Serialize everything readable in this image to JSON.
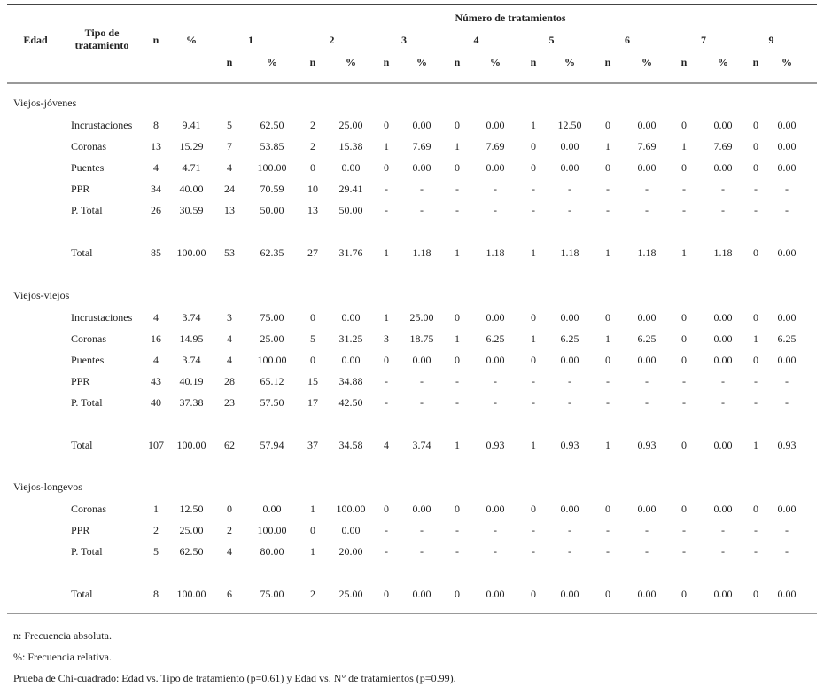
{
  "header": {
    "edad": "Edad",
    "tipo": "Tipo de tratamiento",
    "n": "n",
    "pct": "%",
    "numero_tratamientos": "Número de tratamientos",
    "groups": [
      "1",
      "2",
      "3",
      "4",
      "5",
      "6",
      "7",
      "9"
    ],
    "sub_n": "n",
    "sub_pct": "%"
  },
  "sections": [
    {
      "age": "Viejos-jóvenes",
      "rows": [
        [
          "Incrustaciones",
          "8",
          "9.41",
          "5",
          "62.50",
          "2",
          "25.00",
          "0",
          "0.00",
          "0",
          "0.00",
          "1",
          "12.50",
          "0",
          "0.00",
          "0",
          "0.00",
          "0",
          "0.00"
        ],
        [
          "Coronas",
          "13",
          "15.29",
          "7",
          "53.85",
          "2",
          "15.38",
          "1",
          "7.69",
          "1",
          "7.69",
          "0",
          "0.00",
          "1",
          "7.69",
          "1",
          "7.69",
          "0",
          "0.00"
        ],
        [
          "Puentes",
          "4",
          "4.71",
          "4",
          "100.00",
          "0",
          "0.00",
          "0",
          "0.00",
          "0",
          "0.00",
          "0",
          "0.00",
          "0",
          "0.00",
          "0",
          "0.00",
          "0",
          "0.00"
        ],
        [
          "PPR",
          "34",
          "40.00",
          "24",
          "70.59",
          "10",
          "29.41",
          "-",
          "-",
          "-",
          "-",
          "-",
          "-",
          "-",
          "-",
          "-",
          "-",
          "-",
          "-"
        ],
        [
          "P. Total",
          "26",
          "30.59",
          "13",
          "50.00",
          "13",
          "50.00",
          "-",
          "-",
          "-",
          "-",
          "-",
          "-",
          "-",
          "-",
          "-",
          "-",
          "-",
          "-"
        ]
      ],
      "total": [
        "Total",
        "85",
        "100.00",
        "53",
        "62.35",
        "27",
        "31.76",
        "1",
        "1.18",
        "1",
        "1.18",
        "1",
        "1.18",
        "1",
        "1.18",
        "1",
        "1.18",
        "0",
        "0.00"
      ]
    },
    {
      "age": "Viejos-viejos",
      "rows": [
        [
          "Incrustaciones",
          "4",
          "3.74",
          "3",
          "75.00",
          "0",
          "0.00",
          "1",
          "25.00",
          "0",
          "0.00",
          "0",
          "0.00",
          "0",
          "0.00",
          "0",
          "0.00",
          "0",
          "0.00"
        ],
        [
          "Coronas",
          "16",
          "14.95",
          "4",
          "25.00",
          "5",
          "31.25",
          "3",
          "18.75",
          "1",
          "6.25",
          "1",
          "6.25",
          "1",
          "6.25",
          "0",
          "0.00",
          "1",
          "6.25"
        ],
        [
          "Puentes",
          "4",
          "3.74",
          "4",
          "100.00",
          "0",
          "0.00",
          "0",
          "0.00",
          "0",
          "0.00",
          "0",
          "0.00",
          "0",
          "0.00",
          "0",
          "0.00",
          "0",
          "0.00"
        ],
        [
          "PPR",
          "43",
          "40.19",
          "28",
          "65.12",
          "15",
          "34.88",
          "-",
          "-",
          "-",
          "-",
          "-",
          "-",
          "-",
          "-",
          "-",
          "-",
          "-",
          "-"
        ],
        [
          "P. Total",
          "40",
          "37.38",
          "23",
          "57.50",
          "17",
          "42.50",
          "-",
          "-",
          "-",
          "-",
          "-",
          "-",
          "-",
          "-",
          "-",
          "-",
          "-",
          "-"
        ]
      ],
      "total": [
        "Total",
        "107",
        "100.00",
        "62",
        "57.94",
        "37",
        "34.58",
        "4",
        "3.74",
        "1",
        "0.93",
        "1",
        "0.93",
        "1",
        "0.93",
        "0",
        "0.00",
        "1",
        "0.93"
      ]
    },
    {
      "age": "Viejos-longevos",
      "rows": [
        [
          "Coronas",
          "1",
          "12.50",
          "0",
          "0.00",
          "1",
          "100.00",
          "0",
          "0.00",
          "0",
          "0.00",
          "0",
          "0.00",
          "0",
          "0.00",
          "0",
          "0.00",
          "0",
          "0.00"
        ],
        [
          "PPR",
          "2",
          "25.00",
          "2",
          "100.00",
          "0",
          "0.00",
          "-",
          "-",
          "-",
          "-",
          "-",
          "-",
          "-",
          "-",
          "-",
          "-",
          "-",
          "-"
        ],
        [
          "P. Total",
          "5",
          "62.50",
          "4",
          "80.00",
          "1",
          "20.00",
          "-",
          "-",
          "-",
          "-",
          "-",
          "-",
          "-",
          "-",
          "-",
          "-",
          "-",
          "-"
        ]
      ],
      "total": [
        "Total",
        "8",
        "100.00",
        "6",
        "75.00",
        "2",
        "25.00",
        "0",
        "0.00",
        "0",
        "0.00",
        "0",
        "0.00",
        "0",
        "0.00",
        "0",
        "0.00",
        "0",
        "0.00"
      ]
    }
  ],
  "footnotes": [
    "n: Frecuencia absoluta.",
    "%: Frecuencia relativa.",
    "Prueba de Chi-cuadrado: Edad vs. Tipo de tratamiento (p=0.61) y Edad vs. N° de tratamientos (p=0.99)."
  ]
}
